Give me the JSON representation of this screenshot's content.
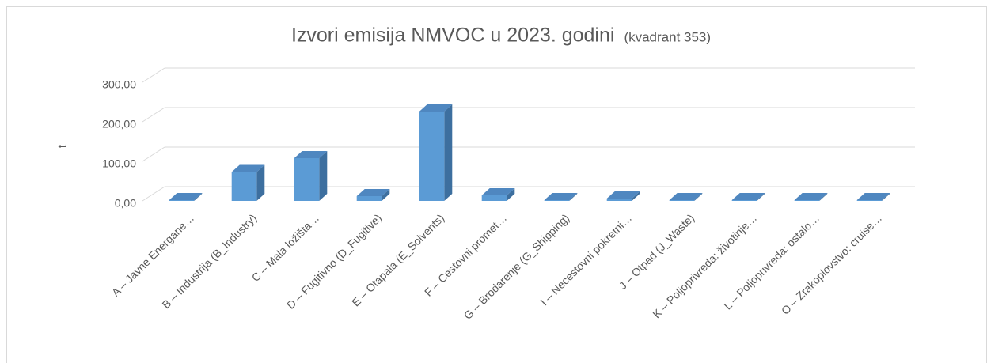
{
  "chart_data": {
    "type": "bar3d",
    "title": "Izvori emisija NMVOC u 2023. godini",
    "subtitle": "(kvadrant 353)",
    "y_label": "t",
    "categories": [
      "A – Javne Energane…",
      "B – Industrija (B_Industry)",
      "C – Mala ložišta…",
      "D – Fugitivno (D_Fugitive)",
      "E – Otapala (E_Solvents)",
      "F – Cestovni promet…",
      "G – Brodarenje (G_Shipping)",
      "I – Necestovni pokretni…",
      "J – Otpad (J_Waste)",
      "K – Poljoprivreda: životinje…",
      "L – Poljoprivreda: ostalo…",
      "O – Zrakoplovstvo: cruise…"
    ],
    "values": [
      2,
      73,
      108,
      12,
      226,
      14,
      1,
      6,
      1,
      2,
      1,
      1
    ],
    "color": "#5b9bd5",
    "ylim": [
      0,
      300
    ],
    "yticks": [
      {
        "value": 0,
        "label": "0,00"
      },
      {
        "value": 100,
        "label": "100,00"
      },
      {
        "value": 200,
        "label": "200,00"
      },
      {
        "value": 300,
        "label": "300,00"
      }
    ],
    "grid": true
  }
}
